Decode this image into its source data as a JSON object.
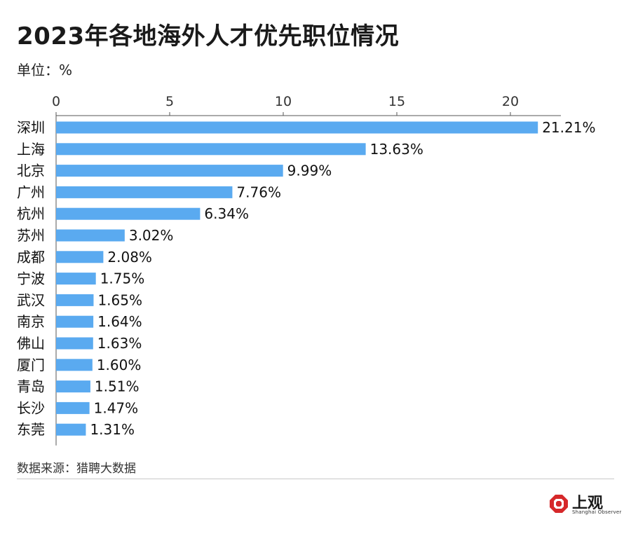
{
  "title": "2023年各地海外人才优先职位情况",
  "unit_label": "单位：%",
  "source": "数据来源：猎聘大数据",
  "logo": {
    "text": "上观",
    "subtext": "Shanghai Observer",
    "mark_color": "#d6282a",
    "icon": "shanghai-observer-logo-icon"
  },
  "chart_data": {
    "type": "bar",
    "orientation": "horizontal",
    "title": "2023年各地海外人才优先职位情况",
    "ylabel": "单位：%",
    "xlim": [
      0,
      22
    ],
    "xticks": [
      0,
      5,
      10,
      15,
      20
    ],
    "tick_labels": [
      "0",
      "5",
      "10",
      "15",
      "20"
    ],
    "grid": false,
    "bar_color": "#5aaaf0",
    "categories": [
      "深圳",
      "上海",
      "北京",
      "广州",
      "杭州",
      "苏州",
      "成都",
      "宁波",
      "武汉",
      "南京",
      "佛山",
      "厦门",
      "青岛",
      "长沙",
      "东莞"
    ],
    "values": [
      21.21,
      13.63,
      9.99,
      7.76,
      6.34,
      3.02,
      2.08,
      1.75,
      1.65,
      1.64,
      1.63,
      1.6,
      1.51,
      1.47,
      1.31
    ],
    "value_labels": [
      "21.21%",
      "13.63%",
      "9.99%",
      "7.76%",
      "6.34%",
      "3.02%",
      "2.08%",
      "1.75%",
      "1.65%",
      "1.64%",
      "1.63%",
      "1.60%",
      "1.51%",
      "1.47%",
      "1.31%"
    ]
  }
}
